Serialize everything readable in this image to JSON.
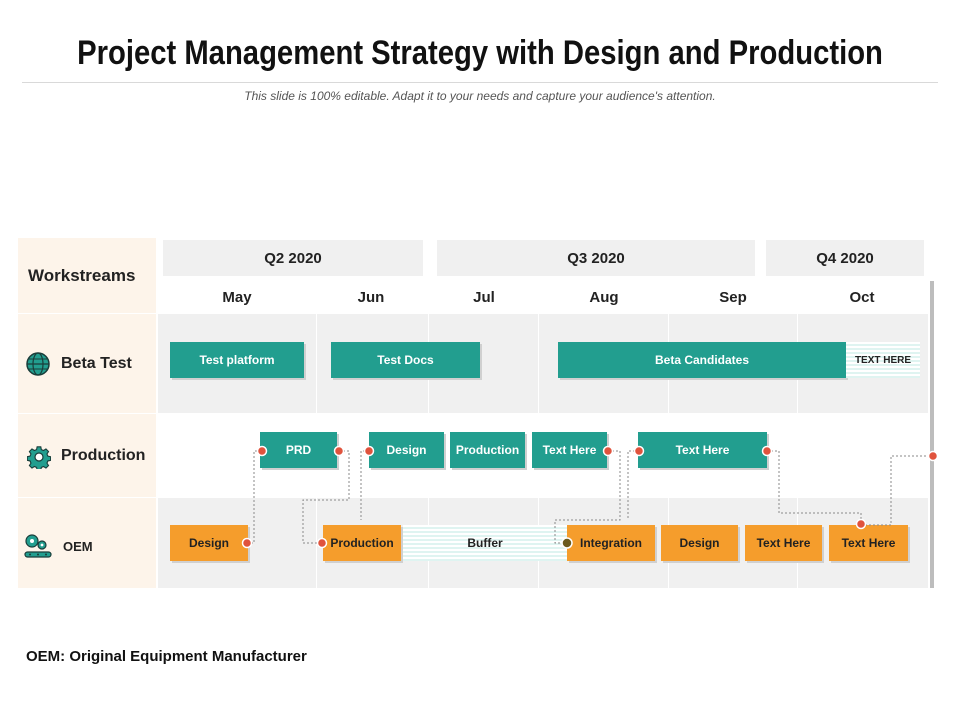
{
  "header": {
    "title": "Project Management Strategy with Design and Production",
    "subtitle": "This slide is 100% editable. Adapt it to your needs and capture your audience's attention."
  },
  "workstreams_label": "Workstreams",
  "quarters": [
    {
      "label": "Q2 2020"
    },
    {
      "label": "Q3 2020"
    },
    {
      "label": "Q4 2020"
    }
  ],
  "months": [
    "May",
    "Jun",
    "Jul",
    "Aug",
    "Sep",
    "Oct"
  ],
  "rows": [
    {
      "label": "Beta Test",
      "icon": "globe-icon"
    },
    {
      "label": "Production",
      "icon": "gear-icon"
    },
    {
      "label": "OEM",
      "icon": "gears-conveyor-icon"
    }
  ],
  "tasks": {
    "beta": [
      "Test platform",
      "Test Docs",
      "Beta Candidates",
      "TEXT HERE"
    ],
    "production": [
      "PRD",
      "Design",
      "Production",
      "Text Here",
      "Text Here"
    ],
    "oem": [
      "Design",
      "Production",
      "Buffer",
      "Integration",
      "Design",
      "Text Here",
      "Text Here"
    ]
  },
  "colors": {
    "teal": "#229e8f",
    "orange": "#f59d2c",
    "connector_dot": "#e0533d",
    "milestone_dot": "#6b5a1e",
    "workstream_bg": "#fdf4ea"
  },
  "footnote": "OEM: Original Equipment Manufacturer"
}
